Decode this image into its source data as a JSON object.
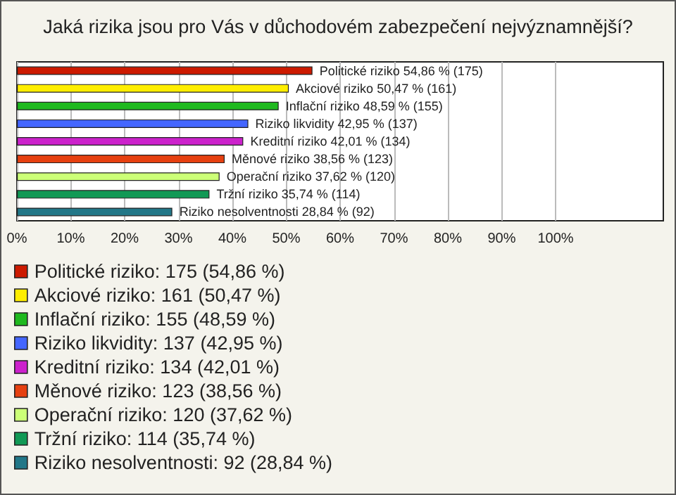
{
  "chart_data": {
    "type": "bar",
    "title": "Jaká rizika jsou pro Vás v důchodovém zabezpečení nejvýznamnější?",
    "orientation": "horizontal",
    "stacked": true,
    "categories": [
      null,
      null,
      null,
      null,
      null,
      null,
      null,
      null,
      null
    ],
    "xlim": [
      0,
      120
    ],
    "xticks": [
      {
        "value": 0,
        "label": "0%"
      },
      {
        "value": 10,
        "label": "10%"
      },
      {
        "value": 20,
        "label": "20%"
      },
      {
        "value": 30,
        "label": "30%"
      },
      {
        "value": 40,
        "label": "40%"
      },
      {
        "value": 50,
        "label": "50%"
      },
      {
        "value": 60,
        "label": "60%"
      },
      {
        "value": 70,
        "label": "70%"
      },
      {
        "value": 80,
        "label": "80%"
      },
      {
        "value": 90,
        "label": "90%"
      },
      {
        "value": 100,
        "label": "100%"
      }
    ],
    "grid": "x",
    "legend": "bottom",
    "series": [
      {
        "name": "Politické riziko: 175 (54,86 %)",
        "color": "#cc1a00",
        "values": [
          54.86,
          null,
          null,
          null,
          null,
          null,
          null,
          null,
          null
        ],
        "value_labels": [
          "Politické riziko 54,86 % (175)",
          null,
          null,
          null,
          null,
          null,
          null,
          null,
          null
        ]
      },
      {
        "name": "Akciové riziko: 161 (50,47 %)",
        "color": "#ffee00",
        "values": [
          null,
          50.47,
          null,
          null,
          null,
          null,
          null,
          null,
          null
        ],
        "value_labels": [
          null,
          "Akciové riziko 50,47 % (161)",
          null,
          null,
          null,
          null,
          null,
          null,
          null
        ]
      },
      {
        "name": "Inflační riziko: 155 (48,59 %)",
        "color": "#1fb91f",
        "values": [
          null,
          null,
          48.59,
          null,
          null,
          null,
          null,
          null,
          null
        ],
        "value_labels": [
          null,
          null,
          "Inflační riziko 48,59 % (155)",
          null,
          null,
          null,
          null,
          null,
          null
        ]
      },
      {
        "name": "Riziko likvidity: 137 (42,95 %)",
        "color": "#4466ff",
        "values": [
          null,
          null,
          null,
          42.95,
          null,
          null,
          null,
          null,
          null
        ],
        "value_labels": [
          null,
          null,
          null,
          "Riziko likvidity 42,95 % (137)",
          null,
          null,
          null,
          null,
          null
        ]
      },
      {
        "name": "Kreditní riziko: 134 (42,01 %)",
        "color": "#cc22cc",
        "values": [
          null,
          null,
          null,
          null,
          42.01,
          null,
          null,
          null,
          null
        ],
        "value_labels": [
          null,
          null,
          null,
          null,
          "Kreditní riziko 42,01 % (134)",
          null,
          null,
          null,
          null
        ]
      },
      {
        "name": "Měnové riziko: 123 (38,56 %)",
        "color": "#e64010",
        "values": [
          null,
          null,
          null,
          null,
          null,
          38.56,
          null,
          null,
          null
        ],
        "value_labels": [
          null,
          null,
          null,
          null,
          null,
          "Měnové riziko 38,56 % (123)",
          null,
          null,
          null
        ]
      },
      {
        "name": "Operační riziko: 120 (37,62 %)",
        "color": "#ccff77",
        "values": [
          null,
          null,
          null,
          null,
          null,
          null,
          37.62,
          null,
          null
        ],
        "value_labels": [
          null,
          null,
          null,
          null,
          null,
          null,
          "Operační riziko 37,62 % (120)",
          null,
          null
        ]
      },
      {
        "name": "Tržní riziko: 114 (35,74 %)",
        "color": "#119955",
        "values": [
          null,
          null,
          null,
          null,
          null,
          null,
          null,
          35.74,
          null
        ],
        "value_labels": [
          null,
          null,
          null,
          null,
          null,
          null,
          null,
          "Tržní riziko 35,74 % (114)",
          null
        ]
      },
      {
        "name": "Riziko nesolventnosti: 92 (28,84 %)",
        "color": "#227788",
        "values": [
          null,
          null,
          null,
          null,
          null,
          null,
          null,
          null,
          28.84
        ],
        "value_labels": [
          null,
          null,
          null,
          null,
          null,
          null,
          null,
          null,
          "Riziko nesolventnosti 28,84 % (92)"
        ]
      }
    ]
  }
}
